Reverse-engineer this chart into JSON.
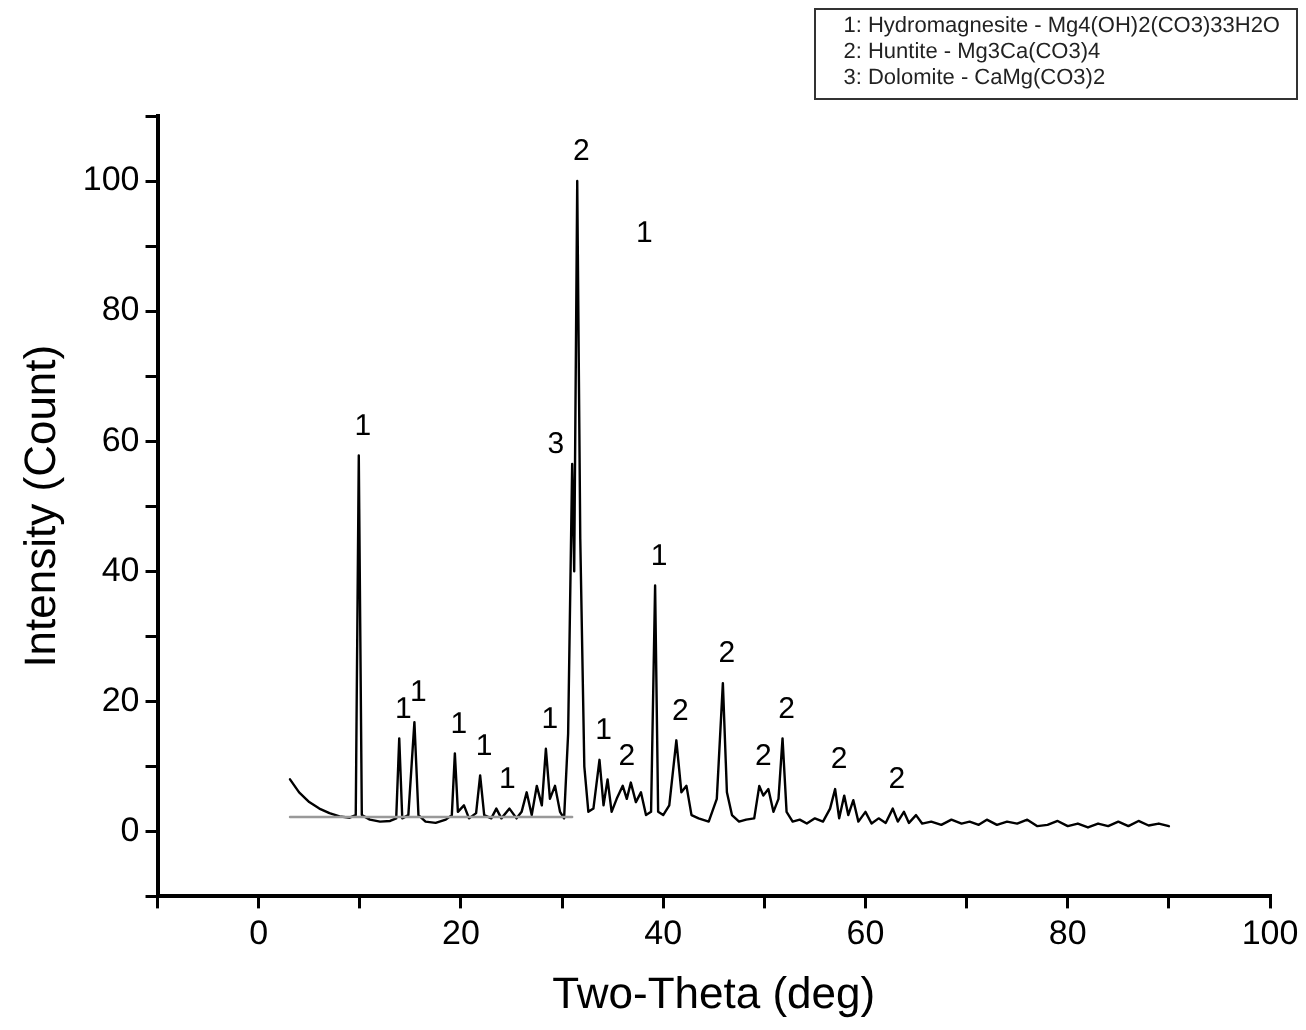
{
  "chart_data": {
    "type": "line",
    "xlabel": "Two-Theta (deg)",
    "ylabel": "Intensity (Count)",
    "xlim": [
      -10,
      100
    ],
    "xticks": [
      {
        "value": -10,
        "label": null
      },
      0,
      {
        "value": 10,
        "label": null
      },
      20,
      {
        "value": 30,
        "label": null
      },
      40,
      {
        "value": 50,
        "label": null
      },
      60,
      {
        "value": 70,
        "label": null
      },
      80,
      {
        "value": 90,
        "label": null
      },
      100
    ],
    "ylim": [
      -10,
      110
    ],
    "yticks": [
      {
        "value": -10,
        "label": null
      },
      0,
      {
        "value": 10,
        "label": null
      },
      20,
      {
        "value": 30,
        "label": null
      },
      40,
      {
        "value": 50,
        "label": null
      },
      60,
      {
        "value": 70,
        "label": null
      },
      80,
      {
        "value": 90,
        "label": null
      },
      100,
      {
        "value": 110,
        "label": null
      }
    ],
    "grid": false,
    "legend": false,
    "marker": "none",
    "line_style": "solid",
    "series": [
      {
        "color": "#999999",
        "x": [
          3.1,
          31
        ],
        "values": [
          2.2,
          2.2
        ]
      },
      {
        "color": "#000000",
        "x": [
          3.1,
          4,
          5,
          6,
          7,
          8,
          9,
          9.6,
          9.9,
          10.2,
          11,
          12,
          13,
          13.6,
          13.9,
          14.2,
          14.8,
          15.4,
          15.8,
          16.5,
          17.5,
          18.5,
          19.1,
          19.4,
          19.7,
          20.3,
          20.8,
          21.5,
          21.9,
          22.3,
          23,
          23.5,
          24,
          24.8,
          25.5,
          26,
          26.5,
          27,
          27.5,
          28,
          28.4,
          28.8,
          29.3,
          29.8,
          30.2,
          30.6,
          31,
          31.2,
          31.5,
          31.8,
          32.2,
          32.6,
          33.1,
          33.7,
          34.1,
          34.5,
          34.9,
          35.4,
          36,
          36.4,
          36.8,
          37.3,
          37.8,
          38.3,
          38.8,
          39.2,
          39.5,
          40,
          40.6,
          41.3,
          41.8,
          42.3,
          42.8,
          43.5,
          44.5,
          45.3,
          45.9,
          46.3,
          46.8,
          47.5,
          48.2,
          49,
          49.5,
          49.9,
          50.4,
          50.9,
          51.4,
          51.8,
          52.2,
          52.8,
          53.5,
          54.2,
          55,
          55.8,
          56.5,
          57,
          57.4,
          57.9,
          58.3,
          58.8,
          59.3,
          60,
          60.6,
          61.3,
          62,
          62.7,
          63.2,
          63.8,
          64.3,
          65,
          65.6,
          66.5,
          67.5,
          68.5,
          69.5,
          70.3,
          71.2,
          72,
          73,
          74,
          75,
          76,
          77,
          78,
          79,
          80,
          81,
          82,
          83,
          84,
          85,
          86,
          87,
          88,
          89,
          90
        ],
        "values": [
          8,
          6,
          4.5,
          3.5,
          2.8,
          2.3,
          2.1,
          2.5,
          57.8,
          2.5,
          1.8,
          1.5,
          1.6,
          2,
          14.3,
          2,
          2.5,
          16.8,
          2.5,
          1.5,
          1.3,
          1.8,
          2.5,
          12,
          3,
          4,
          2,
          2.8,
          8.6,
          2.5,
          2,
          3.5,
          2,
          3.5,
          2,
          3,
          6,
          2.5,
          7,
          4,
          12.7,
          5,
          7,
          3,
          2,
          15,
          56.5,
          40,
          100,
          45,
          10,
          3,
          3.5,
          11,
          4,
          8,
          3,
          5,
          7,
          5,
          7.5,
          4.5,
          6,
          2.5,
          3,
          37.8,
          3,
          2.5,
          4,
          14,
          6,
          7,
          2.5,
          2,
          1.5,
          5,
          22.8,
          6,
          2.5,
          1.5,
          1.8,
          2,
          7,
          5.5,
          6.5,
          3,
          5,
          14.3,
          3,
          1.5,
          1.8,
          1.2,
          2,
          1.5,
          3.5,
          6.5,
          2,
          5.5,
          2.5,
          4.8,
          1.5,
          3,
          1.2,
          2,
          1.3,
          3.5,
          1.5,
          3,
          1.3,
          2.5,
          1.2,
          1.5,
          1,
          1.8,
          1.2,
          1.5,
          1,
          1.8,
          1,
          1.5,
          1.2,
          1.8,
          0.8,
          1,
          1.6,
          0.8,
          1.2,
          0.6,
          1.2,
          0.8,
          1.5,
          0.8,
          1.6,
          0.9,
          1.2,
          0.8
        ]
      }
    ],
    "annotations": [
      "1: Hydromagnesite - Mg4(OH)2(CO3)33H2O",
      "2: Huntite - Mg3Ca(CO3)4",
      "3: Dolomite - CaMg(CO3)2",
      {
        "text": "1",
        "x": 9.9,
        "y": 57.8
      },
      {
        "text": "1",
        "x": 13.9,
        "y": 14.3
      },
      {
        "text": "1",
        "x": 15.4,
        "y": 16.8
      },
      {
        "text": "1",
        "x": 19.4,
        "y": 12
      },
      {
        "text": "1",
        "x": 21.9,
        "y": 8.6
      },
      {
        "text": "1",
        "x": 24.2,
        "y": 3.5
      },
      {
        "text": "1",
        "x": 28.4,
        "y": 12.7
      },
      {
        "text": "3",
        "x": 31,
        "y": 56.5
      },
      {
        "text": "2",
        "x": 31.5,
        "y": 100
      },
      "1",
      {
        "text": "1",
        "x": 33.7,
        "y": 11
      },
      {
        "text": "2",
        "x": 36,
        "y": 7
      },
      {
        "text": "1",
        "x": 39.2,
        "y": 37.8
      },
      {
        "text": "2",
        "x": 41.3,
        "y": 14
      },
      {
        "text": "2",
        "x": 45.9,
        "y": 22.8
      },
      {
        "text": "2",
        "x": 49.5,
        "y": 7
      },
      {
        "text": "2",
        "x": 51.8,
        "y": 14.3
      },
      {
        "text": "2",
        "x": 57,
        "y": 6.5
      },
      {
        "text": "2",
        "x": 62.7,
        "y": 3.5
      }
    ]
  }
}
